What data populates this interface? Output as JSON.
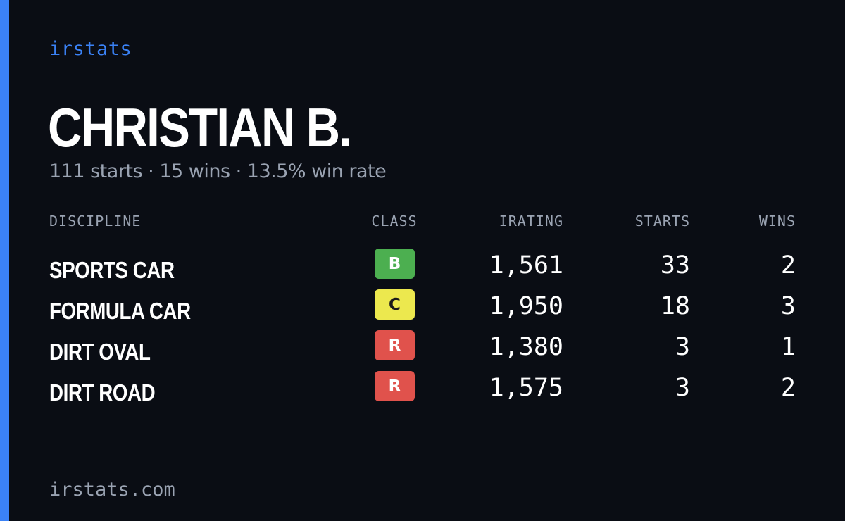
{
  "brand": "irstats",
  "driver": {
    "name": "CHRISTIAN B.",
    "summary": "111 starts · 15 wins · 13.5% win rate"
  },
  "table": {
    "headers": {
      "discipline": "DISCIPLINE",
      "class": "CLASS",
      "irating": "IRATING",
      "starts": "STARTS",
      "wins": "WINS"
    },
    "rows": [
      {
        "discipline": "SPORTS CAR",
        "class": "B",
        "class_color": "#4caf50",
        "class_text_color": "#ffffff",
        "irating": "1,561",
        "starts": "33",
        "wins": "2"
      },
      {
        "discipline": "FORMULA CAR",
        "class": "C",
        "class_color": "#ece84e",
        "class_text_color": "#1a1a1a",
        "irating": "1,950",
        "starts": "18",
        "wins": "3"
      },
      {
        "discipline": "DIRT OVAL",
        "class": "R",
        "class_color": "#e0524c",
        "class_text_color": "#ffffff",
        "irating": "1,380",
        "starts": "3",
        "wins": "1"
      },
      {
        "discipline": "DIRT ROAD",
        "class": "R",
        "class_color": "#e0524c",
        "class_text_color": "#ffffff",
        "irating": "1,575",
        "starts": "3",
        "wins": "2"
      }
    ]
  },
  "footer": "irstats.com",
  "colors": {
    "background": "#0a0d14",
    "accent": "#3b82f6",
    "muted_text": "#9aa3b2"
  }
}
